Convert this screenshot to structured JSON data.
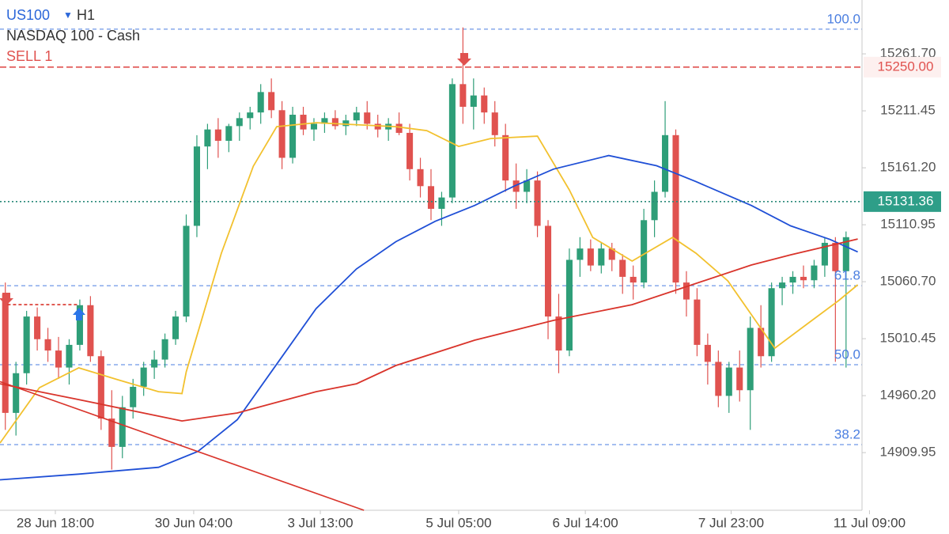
{
  "chart_data": {
    "type": "candlestick",
    "symbol": "US100",
    "timeframe": "H1",
    "title": "NASDAQ 100 - Cash",
    "signal": "SELL 1",
    "up_color": "#2e9e78",
    "down_color": "#e0524f",
    "xlim": [
      -0.5,
      80.5
    ],
    "ylim": [
      14859.1,
      15309.2
    ],
    "xticks": [
      {
        "value": 4.7,
        "label": "28 Jun 18:00"
      },
      {
        "value": 17.7,
        "label": "30 Jun 04:00"
      },
      {
        "value": 29.6,
        "label": "3 Jul 13:00"
      },
      {
        "value": 42.6,
        "label": "5 Jul 05:00"
      },
      {
        "value": 54.5,
        "label": "6 Jul 14:00"
      },
      {
        "value": 68.2,
        "label": "7 Jul 23:00"
      },
      {
        "value": 81.2,
        "label": "11 Jul 09:00"
      }
    ],
    "yticks": [
      {
        "value": 15261.7,
        "label": "15261.70"
      },
      15211.45,
      {
        "value": 15161.2,
        "label": "15161.20"
      },
      15110.95,
      {
        "value": 15060.7,
        "label": "15060.70"
      },
      15010.45,
      {
        "value": 14960.2,
        "label": "14960.20"
      },
      14909.95
    ],
    "x": [
      0,
      1,
      2,
      3,
      4,
      5,
      6,
      7,
      8,
      9,
      10,
      11,
      12,
      13,
      14,
      15,
      16,
      17,
      18,
      19,
      20,
      21,
      22,
      23,
      24,
      25,
      26,
      27,
      28,
      29,
      30,
      31,
      32,
      33,
      34,
      35,
      36,
      37,
      38,
      39,
      40,
      41,
      42,
      43,
      44,
      45,
      46,
      47,
      48,
      49,
      50,
      51,
      52,
      53,
      54,
      55,
      56,
      57,
      58,
      59,
      60,
      61,
      62,
      63,
      64,
      65,
      66,
      67,
      68,
      69,
      70,
      71,
      72,
      73,
      74,
      75,
      76,
      77,
      78,
      79
    ],
    "open": [
      15050,
      14945,
      14980,
      15030,
      15010,
      15000,
      14985,
      15005,
      15040,
      14995,
      14940,
      14915,
      14950,
      14968,
      14985,
      14992,
      15010,
      15030,
      15110,
      15180,
      15195,
      15185,
      15198,
      15205,
      15210,
      15228,
      15212,
      15170,
      15208,
      15195,
      15200,
      15205,
      15198,
      15203,
      15210,
      15200,
      15195,
      15200,
      15192,
      15160,
      15145,
      15125,
      15135,
      15235,
      15215,
      15225,
      15210,
      15190,
      15150,
      15140,
      15150,
      15110,
      15030,
      15000,
      15080,
      15090,
      15075,
      15090,
      15080,
      15065,
      15060,
      15115,
      15140,
      15190,
      15060,
      15045,
      15005,
      14990,
      14960,
      14985,
      14965,
      15020,
      14995,
      15055,
      15060,
      15065,
      15062,
      15075,
      15095,
      15070
    ],
    "high": [
      15060,
      14990,
      15035,
      15038,
      15020,
      15012,
      15010,
      15045,
      15048,
      15000,
      14965,
      14960,
      14975,
      14990,
      15000,
      15015,
      15035,
      15120,
      15190,
      15200,
      15205,
      15200,
      15210,
      15215,
      15235,
      15240,
      15220,
      15215,
      15215,
      15205,
      15210,
      15212,
      15208,
      15215,
      15220,
      15208,
      15205,
      15210,
      15200,
      15170,
      15160,
      15140,
      15240,
      15285,
      15240,
      15232,
      15220,
      15200,
      15165,
      15160,
      15158,
      15115,
      15050,
      15090,
      15100,
      15098,
      15095,
      15095,
      15085,
      15075,
      15125,
      15150,
      15220,
      15195,
      15070,
      15055,
      15015,
      15000,
      14990,
      15000,
      15030,
      15040,
      15060,
      15065,
      15070,
      15075,
      15080,
      15100,
      15100,
      15105
    ],
    "low": [
      14930,
      14925,
      14970,
      15000,
      14990,
      14975,
      14970,
      15000,
      14990,
      14930,
      14895,
      14905,
      14940,
      14960,
      14975,
      14985,
      15005,
      15025,
      15100,
      15160,
      15170,
      15175,
      15185,
      15195,
      15200,
      15205,
      15160,
      15165,
      15190,
      15185,
      15192,
      15195,
      15190,
      15198,
      15195,
      15188,
      15185,
      15190,
      15150,
      15135,
      15115,
      15110,
      15130,
      15200,
      15195,
      15200,
      15180,
      15140,
      15125,
      15130,
      15100,
      15010,
      14980,
      14995,
      15065,
      15070,
      15068,
      15070,
      15050,
      15045,
      15055,
      15100,
      15135,
      15050,
      15030,
      14995,
      14970,
      14950,
      14945,
      14955,
      14930,
      14985,
      14990,
      15040,
      15050,
      15055,
      15055,
      15065,
      14990,
      14985
    ],
    "close": [
      14945,
      14980,
      15030,
      15010,
      15000,
      14985,
      15005,
      15040,
      14995,
      14940,
      14915,
      14950,
      14968,
      14985,
      14992,
      15010,
      15030,
      15110,
      15180,
      15195,
      15185,
      15198,
      15205,
      15210,
      15228,
      15212,
      15170,
      15208,
      15195,
      15200,
      15205,
      15198,
      15203,
      15210,
      15200,
      15195,
      15200,
      15192,
      15160,
      15145,
      15125,
      15135,
      15235,
      15215,
      15225,
      15210,
      15190,
      15150,
      15140,
      15150,
      15110,
      15030,
      15000,
      15080,
      15090,
      15075,
      15090,
      15080,
      15065,
      15060,
      15115,
      15140,
      15190,
      15060,
      15045,
      15005,
      14990,
      14960,
      14985,
      14965,
      15020,
      14995,
      15055,
      15060,
      15065,
      15062,
      15075,
      15095,
      15070,
      15100
    ],
    "overlays": [
      {
        "color": "#f2c12e",
        "x": [
          -0.5,
          3.2,
          6.9,
          10.6,
          14.4,
          16.6,
          17.0,
          20.3,
          23.3,
          25.5,
          29.2,
          36.7,
          39.6,
          42.6,
          45.6,
          50.0,
          53.0,
          55.2,
          58.9,
          62.7,
          64.9,
          67.9,
          72.3,
          75.3,
          78.3,
          80.1
        ],
        "values": [
          14918.4,
          14967.2,
          14984.7,
          14974.2,
          14963.7,
          14962.0,
          14981.2,
          15085.8,
          15162.6,
          15197.5,
          15201.0,
          15197.5,
          15194.0,
          15180.0,
          15187.0,
          15189.1,
          15141.7,
          15099.8,
          15078.9,
          15099.8,
          15085.8,
          15061.4,
          15002.1,
          15023.1,
          15044.0,
          15058.0
        ]
      },
      {
        "color": "#1f4fd6",
        "x": [
          -0.5,
          6.9,
          14.4,
          18.1,
          21.8,
          25.5,
          29.2,
          33.0,
          36.7,
          40.4,
          44.1,
          47.8,
          51.5,
          56.7,
          61.2,
          64.9,
          70.1,
          73.8,
          77.5,
          80.1
        ],
        "values": [
          14886,
          14891,
          14897,
          14911,
          14939,
          14988,
          15037,
          15072,
          15096,
          15114,
          15128,
          15145,
          15160,
          15172,
          15163,
          15149,
          15128,
          15110,
          15098,
          15087
        ]
      },
      {
        "color": "#d9342b",
        "x": [
          -0.5,
          6.9,
          16.6,
          21.8,
          29.2,
          33.0,
          36.7,
          44.1,
          51.5,
          58.9,
          63.4,
          70.1,
          73.8,
          80.1
        ],
        "values": [
          14970.7,
          14956.7,
          14937.9,
          14944.9,
          14963.7,
          14970.7,
          14986.8,
          15009.1,
          15026.6,
          15040.5,
          15054.5,
          15075.4,
          15084.4,
          15098.4
        ]
      }
    ],
    "trendlines": [
      {
        "color": "#d9342b",
        "dash": false,
        "x": [
          -0.5,
          33.7
        ],
        "values": [
          14972.6,
          14859.1
        ]
      },
      {
        "color": "#d9342b",
        "dash": true,
        "x": [
          0.2,
          6.9
        ],
        "values": [
          15040.5,
          15040.5
        ]
      }
    ],
    "fib_levels": [
      {
        "value": 15283.5,
        "label": "100.0"
      },
      {
        "value": 15057.2,
        "label": "61.8"
      },
      {
        "value": 14987.5,
        "label": "50.0"
      },
      {
        "value": 14917.0,
        "label": "38.2"
      }
    ],
    "fib_color": "#4a7ee0",
    "price_levels": [
      {
        "value": 15250,
        "label": "15250.00",
        "color": "#e0524f",
        "box_color": "#fdf0ef",
        "text_color": "#e0524f",
        "dash": "8,4"
      },
      {
        "value": 15131.36,
        "label": "15131.36",
        "color": "#2a8a7a",
        "box_color": "#2e9e88",
        "text_color": "#ffffff",
        "dash": "2,3"
      }
    ]
  }
}
